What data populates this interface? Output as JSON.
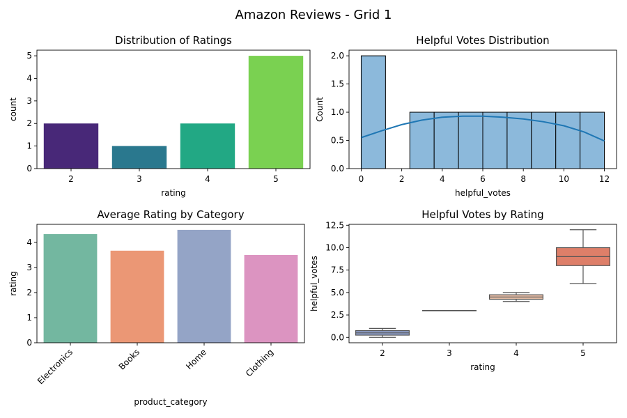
{
  "figure": {
    "title": "Amazon Reviews - Grid 1"
  },
  "chart_data": [
    {
      "type": "bar",
      "title": "Distribution of Ratings",
      "xlabel": "rating",
      "ylabel": "count",
      "categories": [
        "2",
        "3",
        "4",
        "5"
      ],
      "values": [
        2,
        1,
        2,
        5
      ],
      "colors": [
        "#482878",
        "#2a788e",
        "#22a884",
        "#7ad151"
      ],
      "ylim": [
        0,
        5.25
      ],
      "yticks": [
        "0",
        "1",
        "2",
        "3",
        "4",
        "5"
      ]
    },
    {
      "type": "bar",
      "subtype": "histogram_with_kde",
      "title": "Helpful Votes Distribution",
      "xlabel": "helpful_votes",
      "ylabel": "Count",
      "bin_edges": [
        0,
        1.2,
        2.4,
        3.6,
        4.8,
        6.0,
        7.2,
        8.4,
        9.6,
        10.8,
        12.0
      ],
      "values": [
        2,
        0,
        1,
        1,
        1,
        1,
        1,
        1,
        1,
        1
      ],
      "kde": {
        "x": [
          0,
          1,
          2,
          3,
          4,
          5,
          6,
          7,
          8,
          9,
          10,
          11,
          12
        ],
        "y": [
          0.55,
          0.67,
          0.78,
          0.86,
          0.91,
          0.93,
          0.93,
          0.91,
          0.88,
          0.83,
          0.76,
          0.65,
          0.49
        ]
      },
      "bar_color": "#8cb9db",
      "kde_color": "#1f77b4",
      "xlim": [
        -0.6,
        12.6
      ],
      "ylim": [
        0,
        2.1
      ],
      "xticks": [
        "0",
        "2",
        "4",
        "6",
        "8",
        "10",
        "12"
      ],
      "yticks": [
        "0.0",
        "0.5",
        "1.0",
        "1.5",
        "2.0"
      ]
    },
    {
      "type": "bar",
      "title": "Average Rating by Category",
      "xlabel": "product_category",
      "ylabel": "rating",
      "categories": [
        "Electronics",
        "Books",
        "Home",
        "Clothing"
      ],
      "values": [
        4.33,
        3.67,
        4.5,
        3.5
      ],
      "colors": [
        "#73b7a0",
        "#eb9775",
        "#94a4c6",
        "#dc94c1"
      ],
      "ylim": [
        0,
        4.72
      ],
      "yticks": [
        "0",
        "1",
        "2",
        "3",
        "4"
      ]
    },
    {
      "type": "box",
      "title": "Helpful Votes by Rating",
      "xlabel": "rating",
      "ylabel": "helpful_votes",
      "categories": [
        "2",
        "3",
        "4",
        "5"
      ],
      "boxes": [
        {
          "min": 0,
          "q1": 0.25,
          "median": 0.5,
          "q3": 0.75,
          "max": 1
        },
        {
          "min": 3,
          "q1": 3,
          "median": 3,
          "q3": 3,
          "max": 3
        },
        {
          "min": 4,
          "q1": 4.25,
          "median": 4.5,
          "q3": 4.75,
          "max": 5
        },
        {
          "min": 6,
          "q1": 8,
          "median": 9,
          "q3": 10,
          "max": 12
        }
      ],
      "colors": [
        "#8fa0cc",
        "#cfd5e8",
        "#eac0a8",
        "#de7f69"
      ],
      "ylim": [
        -0.6,
        12.6
      ],
      "yticks": [
        "0.0",
        "2.5",
        "5.0",
        "7.5",
        "10.0",
        "12.5"
      ]
    }
  ]
}
